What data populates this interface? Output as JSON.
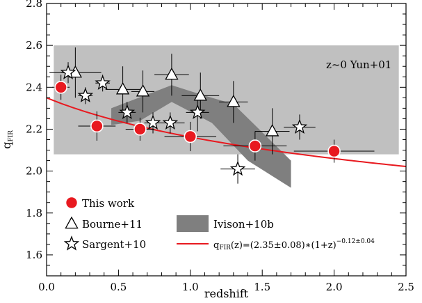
{
  "chart_data": {
    "type": "scatter",
    "xlabel": "redshift",
    "ylabel": "q",
    "ylabel_sub": "FIR",
    "xlim": [
      0.0,
      2.5
    ],
    "ylim": [
      1.5,
      2.8
    ],
    "xticks": [
      "0.0",
      "0.5",
      "1.0",
      "1.5",
      "2.0",
      "2.5"
    ],
    "yticks": [
      "1.6",
      "1.8",
      "2.0",
      "2.2",
      "2.4",
      "2.6",
      "2.8"
    ],
    "xtick_values": [
      0.0,
      0.5,
      1.0,
      1.5,
      2.0,
      2.5
    ],
    "ytick_values": [
      1.6,
      1.8,
      2.0,
      2.2,
      2.4,
      2.6,
      2.8
    ],
    "grid": false,
    "colors": {
      "this_work": "#e8191f",
      "fit_line": "#e8191f",
      "yun_band": "#c0c0c0",
      "ivison_band": "#7f7f7f",
      "error_bars": "#000000"
    },
    "yun_band": {
      "label": "z~0 Yun+01",
      "x_range": [
        0.05,
        2.45
      ],
      "y_range": [
        2.08,
        2.6
      ]
    },
    "ivison_band": {
      "name": "Ivison+10b",
      "upper": [
        [
          0.45,
          2.3
        ],
        [
          0.87,
          2.41
        ],
        [
          1.1,
          2.36
        ],
        [
          1.3,
          2.32
        ],
        [
          1.7,
          2.05
        ]
      ],
      "lower": [
        [
          0.45,
          2.22
        ],
        [
          0.65,
          2.24
        ],
        [
          0.87,
          2.33
        ],
        [
          1.15,
          2.23
        ],
        [
          1.4,
          2.05
        ],
        [
          1.7,
          1.92
        ]
      ]
    },
    "series": [
      {
        "name": "This work",
        "marker": "circle",
        "points": [
          {
            "x": 0.1,
            "y": 2.4,
            "xerr": 0.06,
            "yerr": 0.06
          },
          {
            "x": 0.35,
            "y": 2.215,
            "xerr": 0.13,
            "yerr": 0.07
          },
          {
            "x": 0.65,
            "y": 2.2,
            "xerr": 0.1,
            "yerr": 0.055
          },
          {
            "x": 1.0,
            "y": 2.165,
            "xerr": 0.18,
            "yerr": 0.07
          },
          {
            "x": 1.45,
            "y": 2.12,
            "xerr": 0.22,
            "yerr": 0.07
          },
          {
            "x": 2.0,
            "y": 2.095,
            "xerr": 0.28,
            "yerr": 0.055
          }
        ]
      },
      {
        "name": "Bourne+11",
        "marker": "triangle",
        "points": [
          {
            "x": 0.2,
            "y": 2.47,
            "xerr": 0.18,
            "yerr": 0.12
          },
          {
            "x": 0.53,
            "y": 2.39,
            "xerr": 0.12,
            "yerr": 0.11
          },
          {
            "x": 0.67,
            "y": 2.38,
            "xerr": 0.08,
            "yerr": 0.1
          },
          {
            "x": 0.87,
            "y": 2.46,
            "xerr": 0.12,
            "yerr": 0.1
          },
          {
            "x": 1.07,
            "y": 2.36,
            "xerr": 0.13,
            "yerr": 0.11
          },
          {
            "x": 1.3,
            "y": 2.33,
            "xerr": 0.1,
            "yerr": 0.1
          },
          {
            "x": 1.57,
            "y": 2.19,
            "xerr": 0.12,
            "yerr": 0.11
          }
        ]
      },
      {
        "name": "Sargent+10",
        "marker": "star",
        "points": [
          {
            "x": 0.15,
            "y": 2.47,
            "xerr": 0.05,
            "yerr": 0.05
          },
          {
            "x": 0.27,
            "y": 2.36,
            "xerr": 0.05,
            "yerr": 0.04
          },
          {
            "x": 0.39,
            "y": 2.42,
            "xerr": 0.05,
            "yerr": 0.04
          },
          {
            "x": 0.56,
            "y": 2.28,
            "xerr": 0.06,
            "yerr": 0.05
          },
          {
            "x": 0.74,
            "y": 2.23,
            "xerr": 0.06,
            "yerr": 0.05
          },
          {
            "x": 0.86,
            "y": 2.23,
            "xerr": 0.1,
            "yerr": 0.05
          },
          {
            "x": 1.05,
            "y": 2.28,
            "xerr": 0.08,
            "yerr": 0.09
          },
          {
            "x": 1.33,
            "y": 2.01,
            "xerr": 0.12,
            "yerr": 0.07
          },
          {
            "x": 1.76,
            "y": 2.21,
            "xerr": 0.11,
            "yerr": 0.06
          }
        ]
      }
    ],
    "fit": {
      "name": "q_FIR(z)=(2.35±0.08)*(1+z)^(-0.12±0.04)",
      "a": 2.35,
      "b": -0.12,
      "x_range": [
        0.0,
        2.5
      ]
    },
    "legend": {
      "placement": "bottom-left",
      "this_work": "This work",
      "bourne": "Bourne+11",
      "sargent": "Sargent+10",
      "ivison": "Ivison+10b",
      "fit_prefix": "q",
      "fit_sub": "FIR",
      "fit_main": "(z)=(2.35±0.08)∗(1+z)",
      "fit_sup": "−0.12±0.04"
    }
  }
}
